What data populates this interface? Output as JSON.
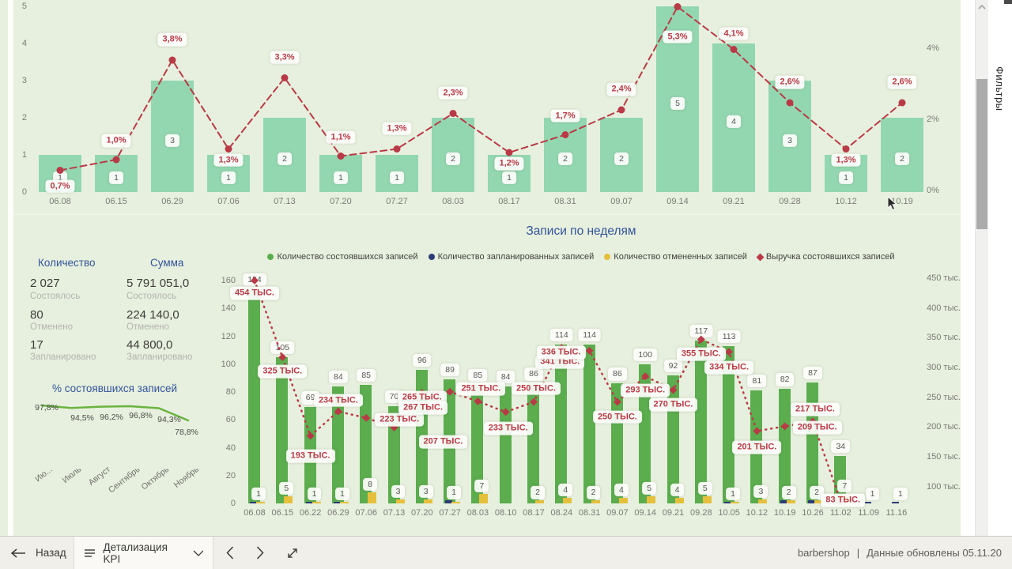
{
  "colors": {
    "background": "#e7f0de",
    "completed": "#5bad4e",
    "planned": "#2c3b79",
    "cancelled": "#e6c03c",
    "revenue": "#b93a46",
    "cancel_share_bar": "#93d7b0",
    "accent_blue": "#33549b",
    "mini_line": "#6ab340"
  },
  "filters_pane": {
    "title": "Фильтры"
  },
  "navbar": {
    "back_label": "Назад",
    "page_name": "Детализация KPI",
    "brand": "barbershop",
    "separator": "|",
    "updated": "Данные обновлены 05.11.20"
  },
  "kpi": {
    "count_header": "Количество",
    "sum_header": "Сумма",
    "rows": [
      {
        "count": "2 027",
        "sum": "5 791 051,0",
        "label": "Состоялось"
      },
      {
        "count": "80",
        "sum": "224 140,0",
        "label": "Отменено"
      },
      {
        "count": "17",
        "sum": "44 800,0",
        "label": "Запланировано"
      }
    ]
  },
  "chart_data": [
    {
      "name": "cancelled-share-by-week",
      "type": "bar",
      "categories": [
        "06.08",
        "06.15",
        "06.29",
        "07.06",
        "07.13",
        "07.20",
        "07.27",
        "08.03",
        "08.17",
        "08.31",
        "09.07",
        "09.14",
        "09.21",
        "09.28",
        "10.12",
        "10.19"
      ],
      "bar_values": [
        1,
        1,
        3,
        1,
        2,
        1,
        1,
        2,
        1,
        2,
        2,
        5,
        4,
        3,
        1,
        2
      ],
      "line_values": [
        0.7,
        1.0,
        3.8,
        1.3,
        3.3,
        1.1,
        1.3,
        2.3,
        1.2,
        1.7,
        2.4,
        5.3,
        4.1,
        2.6,
        1.3,
        2.6
      ],
      "line_labels": [
        "0,7%",
        "1,0%",
        "3,8%",
        "1,3%",
        "3,3%",
        "1,1%",
        "1,3%",
        "2,3%",
        "1,2%",
        "1,7%",
        "2,4%",
        "5,3%",
        "4,1%",
        "2,6%",
        "1,3%",
        "2,6%"
      ],
      "y_left_ticks": [
        "0",
        "1",
        "2",
        "3",
        "4",
        "5"
      ],
      "y_right_ticks": [
        "0%",
        "2%",
        "4%"
      ],
      "ylim_left": [
        0,
        5
      ],
      "ylim_right_pct": [
        0,
        4
      ]
    },
    {
      "name": "records-by-week",
      "type": "bar",
      "title": "Записи по неделям",
      "legend": [
        {
          "label": "Количество состоявшихся записей",
          "color": "#5bad4e",
          "marker": "circle"
        },
        {
          "label": "Количество запланированных записей",
          "color": "#2c3b79",
          "marker": "circle"
        },
        {
          "label": "Количество отмененных записей",
          "color": "#e6c03c",
          "marker": "circle"
        },
        {
          "label": "Выручка состоявшихся записей",
          "color": "#b93a46",
          "marker": "diamond"
        }
      ],
      "categories": [
        "06.08",
        "06.15",
        "06.22",
        "06.29",
        "07.06",
        "07.13",
        "07.20",
        "07.27",
        "08.03",
        "08.10",
        "08.17",
        "08.24",
        "08.31",
        "09.07",
        "09.14",
        "09.21",
        "09.28",
        "10.05",
        "10.12",
        "10.19",
        "10.26",
        "11.02",
        "11.09",
        "11.16"
      ],
      "series": [
        {
          "name": "completed",
          "values": [
            154,
            105,
            69,
            84,
            85,
            70,
            96,
            89,
            85,
            84,
            86,
            114,
            114,
            86,
            100,
            92,
            117,
            113,
            81,
            82,
            87,
            34,
            0,
            0
          ]
        },
        {
          "name": "planned",
          "values": [
            1,
            0,
            1,
            1,
            0,
            0,
            0,
            2,
            0,
            0,
            0,
            0,
            0,
            0,
            0,
            0,
            0,
            1,
            0,
            2,
            2,
            0,
            1,
            1
          ]
        },
        {
          "name": "cancelled",
          "values": [
            1,
            5,
            1,
            1,
            8,
            3,
            3,
            1,
            7,
            0,
            2,
            4,
            2,
            4,
            5,
            4,
            5,
            1,
            3,
            2,
            2,
            7,
            0,
            0
          ]
        }
      ],
      "small_bar_labels": [
        "1",
        "5",
        "1",
        "1",
        "8",
        "3",
        "3",
        "1",
        "7",
        null,
        "2",
        "4",
        "2",
        "4",
        "5",
        "4",
        "5",
        "1",
        "3",
        "2",
        "2",
        "7",
        "1",
        "1"
      ],
      "revenue_values": [
        454,
        325,
        193,
        234,
        223,
        207,
        265,
        267,
        251,
        233,
        250,
        341,
        336,
        250,
        293,
        270,
        355,
        334,
        201,
        209,
        217,
        83,
        null,
        null
      ],
      "revenue_labels": [
        "454 тыс.",
        "325 тыс.",
        "193 тыс.",
        "234 тыс.",
        "223 тыс.",
        "207 тыс.",
        "265 тыс.",
        "267 тыс.",
        "251 тыс.",
        "233 тыс.",
        "250 тыс.",
        "341 тыс.",
        "336 тыс.",
        "250 тыс.",
        "293 тыс.",
        "270 тыс.",
        "355 тыс.",
        "334 тыс.",
        "201 тыс.",
        "209 тыс.",
        "217 тыс.",
        "83 тыс.",
        null,
        null
      ],
      "y_left_ticks": [
        "0",
        "20",
        "40",
        "60",
        "80",
        "100",
        "120",
        "140",
        "160"
      ],
      "y_right_ticks": [
        "100 тыс.",
        "150 тыс.",
        "200 тыс.",
        "250 тыс.",
        "300 тыс.",
        "350 тыс.",
        "400 тыс.",
        "450 тыс."
      ],
      "ylim_left": [
        0,
        160
      ]
    },
    {
      "name": "completed-share-by-month",
      "type": "line",
      "title": "% состоявшихся записей",
      "categories": [
        "Ию...",
        "Июль",
        "Август",
        "Сентябрь",
        "Октябрь",
        "Ноябрь"
      ],
      "values": [
        97.8,
        94.5,
        96.2,
        96.8,
        94.3,
        78.8
      ],
      "labels": [
        "97,8%",
        "94,5%",
        "96,2%",
        "96,8%",
        "94,3%",
        "78,8%"
      ]
    }
  ]
}
